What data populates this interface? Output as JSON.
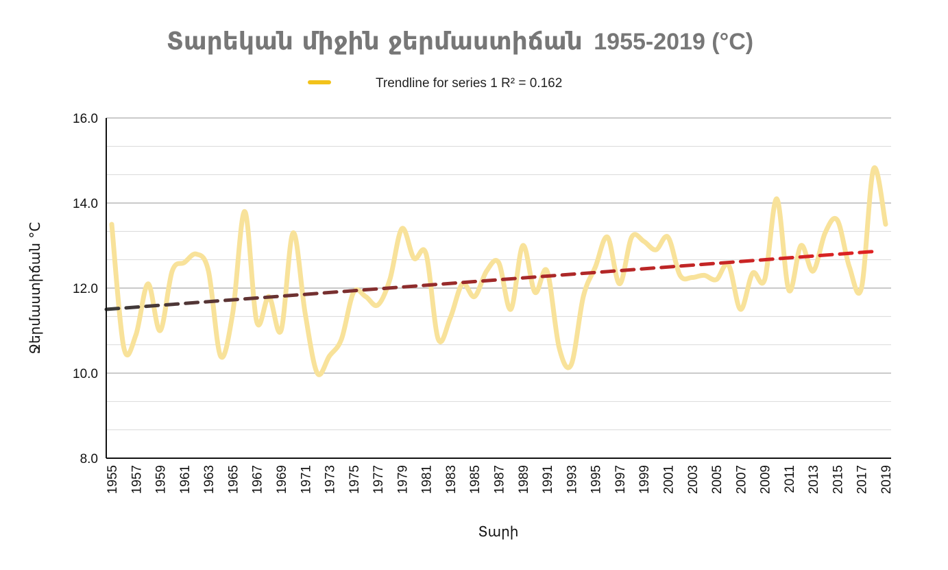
{
  "chart_data": {
    "type": "line",
    "title": "Տարեկան միջին ջերմաստիճան",
    "title_years": "1955-2019 (°C)",
    "xlabel": "Տարի",
    "ylabel": "Ջերմաստիճան °C",
    "ylim": [
      8,
      16
    ],
    "y_ticks": [
      "8.0",
      "10.0",
      "12.0",
      "14.0",
      "16.0"
    ],
    "x_tick_labels": [
      "1955",
      "1957",
      "1959",
      "1961",
      "1963",
      "1965",
      "1967",
      "1969",
      "1971",
      "1973",
      "1975",
      "1977",
      "1979",
      "1981",
      "1983",
      "1985",
      "1987",
      "1989",
      "1991",
      "1993",
      "1995",
      "1997",
      "1999",
      "2001",
      "2003",
      "2005",
      "2007",
      "2009",
      "2011",
      "2013",
      "2015",
      "2017",
      "2019"
    ],
    "grid": true,
    "legend_position": "top-center",
    "series": [
      {
        "name": "",
        "color": "#F8E29A",
        "x": [
          1955,
          1956,
          1957,
          1958,
          1959,
          1960,
          1961,
          1962,
          1963,
          1964,
          1965,
          1966,
          1967,
          1968,
          1969,
          1970,
          1971,
          1972,
          1973,
          1974,
          1975,
          1976,
          1977,
          1978,
          1979,
          1980,
          1981,
          1982,
          1983,
          1984,
          1985,
          1986,
          1987,
          1988,
          1989,
          1990,
          1991,
          1992,
          1993,
          1994,
          1995,
          1996,
          1997,
          1998,
          1999,
          2000,
          2001,
          2002,
          2003,
          2004,
          2005,
          2006,
          2007,
          2008,
          2009,
          2010,
          2011,
          2012,
          2013,
          2014,
          2015,
          2016,
          2017,
          2018,
          2019
        ],
        "values": [
          13.5,
          10.6,
          10.9,
          12.1,
          11.0,
          12.4,
          12.6,
          12.8,
          12.4,
          10.4,
          11.4,
          13.8,
          11.2,
          11.8,
          11.0,
          13.3,
          11.4,
          10.0,
          10.4,
          10.8,
          11.9,
          11.8,
          11.6,
          12.2,
          13.4,
          12.7,
          12.8,
          10.8,
          11.3,
          12.1,
          11.8,
          12.4,
          12.6,
          11.5,
          13.0,
          11.9,
          12.4,
          10.6,
          10.2,
          11.8,
          12.5,
          13.2,
          12.1,
          13.2,
          13.1,
          12.9,
          13.2,
          12.3,
          12.25,
          12.3,
          12.2,
          12.55,
          11.5,
          12.35,
          12.2,
          14.1,
          11.95,
          13.0,
          12.4,
          13.3,
          13.6,
          12.5,
          12.0,
          14.8,
          13.5
        ]
      }
    ],
    "trendline": {
      "name": "Trendline for series 1 R² = 0.162",
      "r_squared": 0.162,
      "x": [
        1955,
        2019
      ],
      "values": [
        11.5,
        12.87
      ],
      "gradient_from": "#3a3a3a",
      "gradient_to": "#e02222"
    }
  }
}
